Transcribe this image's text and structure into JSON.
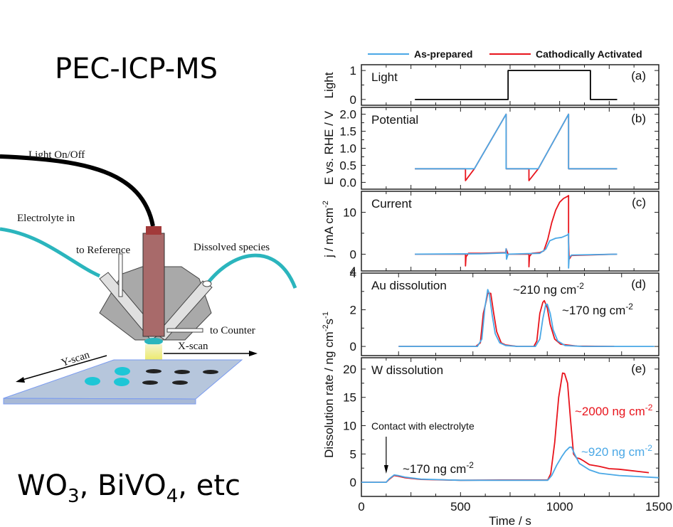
{
  "left": {
    "title": "PEC-ICP-MS",
    "materials": {
      "parts": [
        "WO",
        "3",
        ", BiVO",
        "4",
        ", etc"
      ]
    },
    "labels": {
      "light": "Light On/Off",
      "electrolyte_in": "Electrolyte in",
      "to_reference": "to Reference",
      "dissolved": "Dissolved species",
      "to_counter": "to Counter",
      "x_scan": "X-scan",
      "y_scan": "Y-scan"
    }
  },
  "colors": {
    "as_prepared": "#4aa8e6",
    "activated": "#e8141c",
    "light": "#000000",
    "tube": "#2bb5bd",
    "fiber_cap": "#a23a3a",
    "fiber": "#a86a6a",
    "cell": "#a9a9a9",
    "substrate": "#b6c6dc"
  },
  "chart_data": [
    {
      "type": "line",
      "panel": "a",
      "label": "Light",
      "tag": "(a)",
      "ylabel": "Light",
      "xlim": [
        0,
        1500
      ],
      "ylim": [
        -0.2,
        1.2
      ],
      "yticks": [
        0,
        1
      ],
      "series": [
        {
          "name": "Light",
          "x": [
            270,
            740,
            740,
            1155,
            1155,
            1290
          ],
          "y": [
            0,
            0,
            1,
            1,
            0,
            0
          ]
        }
      ]
    },
    {
      "type": "line",
      "panel": "b",
      "label": "Potential",
      "tag": "(b)",
      "ylabel": "E vs. RHE / V",
      "xlim": [
        0,
        1500
      ],
      "ylim": [
        -0.2,
        2.2
      ],
      "yticks": [
        0.0,
        0.5,
        1.0,
        1.5,
        2.0
      ],
      "ytick_labels": [
        "0.0",
        "0.5",
        "1.0",
        "1.5",
        "2.0"
      ],
      "series": [
        {
          "name": "Cathodically Activated",
          "x": [
            270,
            525,
            525,
            570,
            730,
            730,
            845,
            845,
            892,
            1045,
            1045,
            1290
          ],
          "y": [
            0.4,
            0.4,
            0.05,
            0.4,
            2.0,
            0.4,
            0.4,
            0.05,
            0.4,
            2.0,
            0.4,
            0.4
          ]
        },
        {
          "name": "As-prepared",
          "x": [
            270,
            570,
            730,
            730,
            892,
            1045,
            1045,
            1290
          ],
          "y": [
            0.4,
            0.4,
            2.0,
            0.4,
            0.4,
            2.0,
            0.4,
            0.4
          ]
        }
      ]
    },
    {
      "type": "line",
      "panel": "c",
      "label": "Current",
      "tag": "(c)",
      "ylabel": "j / mA cm-2",
      "xlim": [
        0,
        1500
      ],
      "ylim": [
        -4,
        15
      ],
      "yticks": [
        0,
        10
      ],
      "series": [
        {
          "name": "Cathodically Activated",
          "x": [
            270,
            525,
            525,
            528,
            540,
            600,
            728,
            730,
            740,
            845,
            845,
            848,
            860,
            900,
            920,
            940,
            960,
            980,
            1000,
            1020,
            1040,
            1045,
            1045,
            1048,
            1060,
            1290
          ],
          "y": [
            0,
            0,
            -2.8,
            -0.6,
            0.2,
            0.2,
            0.4,
            1.3,
            0,
            0,
            -3,
            -0.5,
            0.2,
            0.4,
            0.8,
            3.5,
            7.5,
            10.5,
            12.4,
            13.3,
            13.8,
            14.0,
            3,
            -1.2,
            -0.3,
            0
          ]
        },
        {
          "name": "As-prepared",
          "x": [
            270,
            600,
            728,
            730,
            732,
            740,
            900,
            930,
            950,
            980,
            1010,
            1040,
            1045,
            1045,
            1048,
            1060,
            1290
          ],
          "y": [
            0,
            0.1,
            0.3,
            1.3,
            -1.2,
            0,
            0.2,
            1.2,
            3.2,
            3.8,
            4.0,
            4.6,
            4.9,
            -3.3,
            -0.8,
            -0.2,
            0
          ]
        }
      ]
    },
    {
      "type": "line",
      "panel": "d",
      "label": "Au dissolution",
      "tag": "(d)",
      "ylabel": "",
      "xlim": [
        -125,
        875
      ],
      "ylim": [
        -0.5,
        4
      ],
      "yticks": [
        0,
        2,
        4
      ],
      "annotations": [
        {
          "text": "~210 ng cm",
          "sup": "-2"
        },
        {
          "text": "~170 ng cm",
          "sup": "-2"
        }
      ],
      "series": [
        {
          "name": "Cathodically Activated",
          "x": [
            0,
            260,
            275,
            285,
            295,
            300,
            310,
            320,
            330,
            345,
            360,
            400,
            455,
            465,
            475,
            485,
            490,
            500,
            510,
            525,
            545,
            600,
            725
          ],
          "y": [
            0,
            0,
            0.2,
            1.8,
            2.5,
            2.9,
            2.9,
            1.8,
            0.8,
            0.2,
            0.08,
            0,
            0,
            0.3,
            1.8,
            2.4,
            2.5,
            2.1,
            1.2,
            0.4,
            0.12,
            0.02,
            0
          ]
        },
        {
          "name": "As-prepared",
          "x": [
            0,
            265,
            280,
            290,
            300,
            305,
            315,
            325,
            340,
            360,
            400,
            460,
            475,
            485,
            495,
            500,
            510,
            520,
            535,
            560,
            620,
            860
          ],
          "y": [
            0,
            0,
            0.4,
            2.1,
            3.1,
            2.9,
            1.7,
            0.7,
            0.2,
            0.05,
            0,
            0,
            0.4,
            1.5,
            2.3,
            2.3,
            1.8,
            0.9,
            0.3,
            0.05,
            0,
            0
          ]
        }
      ]
    },
    {
      "type": "line",
      "panel": "e",
      "label": "W dissolution",
      "tag": "(e)",
      "ylabel": "Dissolution rate / ng cm-2s-1",
      "xlabel": "Time / s",
      "xlim": [
        0,
        1500
      ],
      "xticks": [
        0,
        500,
        1000,
        1500
      ],
      "ylim": [
        -2.5,
        22
      ],
      "yticks": [
        0,
        5,
        10,
        15,
        20
      ],
      "annotations": [
        {
          "text": "Contact with electrolyte",
          "arrow_x": 125
        },
        {
          "text": "~170 ng cm",
          "sup": "-2"
        },
        {
          "text": "~2000 ng cm",
          "sup": "-2",
          "series": "Cathodically Activated"
        },
        {
          "text": "~920 ng cm",
          "sup": "-2",
          "series": "As-prepared"
        }
      ],
      "series": [
        {
          "name": "Cathodically Activated",
          "x": [
            0,
            125,
            140,
            165,
            180,
            220,
            300,
            500,
            700,
            940,
            955,
            975,
            995,
            1015,
            1025,
            1040,
            1055,
            1070,
            1085,
            1100,
            1120,
            1150,
            1200,
            1250,
            1300,
            1400,
            1450
          ],
          "y": [
            0,
            0,
            0.5,
            1.2,
            1.1,
            0.8,
            0.5,
            0.35,
            0.4,
            0.4,
            1.5,
            7,
            15,
            19.3,
            19.2,
            17.5,
            11,
            5,
            4.3,
            4.2,
            3.8,
            3.1,
            2.8,
            2.4,
            2.3,
            1.9,
            1.7
          ]
        },
        {
          "name": "As-prepared",
          "x": [
            0,
            125,
            140,
            165,
            185,
            220,
            300,
            500,
            700,
            940,
            960,
            985,
            1010,
            1030,
            1050,
            1060,
            1075,
            1100,
            1150,
            1200,
            1300,
            1400,
            1500
          ],
          "y": [
            0,
            0,
            0.6,
            1.3,
            1.2,
            0.9,
            0.55,
            0.35,
            0.35,
            0.35,
            1.2,
            3,
            4.5,
            5.5,
            6.2,
            6.2,
            5,
            3.3,
            2.2,
            1.6,
            1.2,
            1.0,
            0.8
          ]
        }
      ]
    }
  ],
  "legend": [
    {
      "name": "As-prepared",
      "color": "#4aa8e6"
    },
    {
      "name": "Cathodically Activated",
      "color": "#e8141c"
    }
  ],
  "panel_c_extra_ytick": "4"
}
